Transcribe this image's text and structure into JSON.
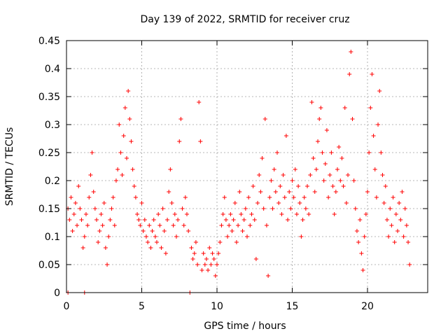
{
  "chart_data": {
    "type": "scatter",
    "title": "Day 139 of 2022, SRMTID for receiver cruz",
    "xlabel": "GPS time / hours",
    "ylabel": "SRMTID / TECUs",
    "xlim": [
      0,
      24
    ],
    "ylim": [
      0,
      0.45
    ],
    "xticks": [
      0,
      5,
      10,
      15,
      20
    ],
    "xtick_labels": [
      "0",
      "5",
      "10",
      "15",
      "20"
    ],
    "yticks": [
      0,
      0.05,
      0.1,
      0.15,
      0.2,
      0.25,
      0.3,
      0.35,
      0.4,
      0.45
    ],
    "ytick_labels": [
      "0",
      "0.05",
      "0.1",
      "0.15",
      "0.2",
      "0.25",
      "0.3",
      "0.35",
      "0.4",
      "0.45"
    ],
    "grid": true,
    "marker": "+",
    "color": "#ff0000",
    "series": [
      {
        "name": "SRMTID",
        "points": [
          [
            0.1,
            0.0
          ],
          [
            0.1,
            0.15
          ],
          [
            0.2,
            0.13
          ],
          [
            0.3,
            0.17
          ],
          [
            0.4,
            0.11
          ],
          [
            0.5,
            0.14
          ],
          [
            0.6,
            0.16
          ],
          [
            0.7,
            0.12
          ],
          [
            0.8,
            0.19
          ],
          [
            0.9,
            0.15
          ],
          [
            1.0,
            0.13
          ],
          [
            1.1,
            0.08
          ],
          [
            1.2,
            0.1
          ],
          [
            1.2,
            0.0
          ],
          [
            1.3,
            0.14
          ],
          [
            1.4,
            0.12
          ],
          [
            1.5,
            0.17
          ],
          [
            1.6,
            0.21
          ],
          [
            1.7,
            0.25
          ],
          [
            1.8,
            0.18
          ],
          [
            1.9,
            0.15
          ],
          [
            2.0,
            0.13
          ],
          [
            2.1,
            0.09
          ],
          [
            2.2,
            0.11
          ],
          [
            2.3,
            0.14
          ],
          [
            2.4,
            0.12
          ],
          [
            2.5,
            0.16
          ],
          [
            2.6,
            0.08
          ],
          [
            2.7,
            0.05
          ],
          [
            2.8,
            0.1
          ],
          [
            2.9,
            0.13
          ],
          [
            3.0,
            0.15
          ],
          [
            3.1,
            0.17
          ],
          [
            3.2,
            0.12
          ],
          [
            3.3,
            0.2
          ],
          [
            3.4,
            0.22
          ],
          [
            3.5,
            0.3
          ],
          [
            3.6,
            0.25
          ],
          [
            3.7,
            0.21
          ],
          [
            3.8,
            0.28
          ],
          [
            3.9,
            0.33
          ],
          [
            4.0,
            0.24
          ],
          [
            4.1,
            0.36
          ],
          [
            4.2,
            0.31
          ],
          [
            4.3,
            0.27
          ],
          [
            4.4,
            0.22
          ],
          [
            4.5,
            0.19
          ],
          [
            4.6,
            0.17
          ],
          [
            4.7,
            0.14
          ],
          [
            4.8,
            0.13
          ],
          [
            4.9,
            0.12
          ],
          [
            5.0,
            0.16
          ],
          [
            5.1,
            0.11
          ],
          [
            5.2,
            0.13
          ],
          [
            5.3,
            0.1
          ],
          [
            5.4,
            0.09
          ],
          [
            5.5,
            0.12
          ],
          [
            5.6,
            0.08
          ],
          [
            5.7,
            0.11
          ],
          [
            5.8,
            0.13
          ],
          [
            5.9,
            0.1
          ],
          [
            6.0,
            0.09
          ],
          [
            6.1,
            0.14
          ],
          [
            6.2,
            0.12
          ],
          [
            6.3,
            0.08
          ],
          [
            6.4,
            0.15
          ],
          [
            6.5,
            0.11
          ],
          [
            6.6,
            0.07
          ],
          [
            6.7,
            0.13
          ],
          [
            6.8,
            0.18
          ],
          [
            6.9,
            0.22
          ],
          [
            7.0,
            0.16
          ],
          [
            7.1,
            0.12
          ],
          [
            7.2,
            0.14
          ],
          [
            7.3,
            0.1
          ],
          [
            7.4,
            0.13
          ],
          [
            7.5,
            0.27
          ],
          [
            7.6,
            0.31
          ],
          [
            7.7,
            0.15
          ],
          [
            7.8,
            0.12
          ],
          [
            7.9,
            0.17
          ],
          [
            8.0,
            0.14
          ],
          [
            8.1,
            0.11
          ],
          [
            8.2,
            0.0
          ],
          [
            8.3,
            0.08
          ],
          [
            8.4,
            0.06
          ],
          [
            8.5,
            0.07
          ],
          [
            8.6,
            0.09
          ],
          [
            8.7,
            0.05
          ],
          [
            8.8,
            0.34
          ],
          [
            8.9,
            0.27
          ],
          [
            9.0,
            0.04
          ],
          [
            9.1,
            0.07
          ],
          [
            9.2,
            0.05
          ],
          [
            9.3,
            0.06
          ],
          [
            9.4,
            0.04
          ],
          [
            9.5,
            0.08
          ],
          [
            9.6,
            0.05
          ],
          [
            9.7,
            0.07
          ],
          [
            9.8,
            0.06
          ],
          [
            9.9,
            0.03
          ],
          [
            10.0,
            0.05
          ],
          [
            10.1,
            0.07
          ],
          [
            10.2,
            0.09
          ],
          [
            10.3,
            0.12
          ],
          [
            10.4,
            0.14
          ],
          [
            10.5,
            0.17
          ],
          [
            10.6,
            0.13
          ],
          [
            10.7,
            0.1
          ],
          [
            10.8,
            0.12
          ],
          [
            10.9,
            0.14
          ],
          [
            11.0,
            0.11
          ],
          [
            11.1,
            0.13
          ],
          [
            11.2,
            0.16
          ],
          [
            11.3,
            0.09
          ],
          [
            11.4,
            0.12
          ],
          [
            11.5,
            0.18
          ],
          [
            11.6,
            0.14
          ],
          [
            11.7,
            0.11
          ],
          [
            11.8,
            0.13
          ],
          [
            11.9,
            0.15
          ],
          [
            12.0,
            0.1
          ],
          [
            12.1,
            0.17
          ],
          [
            12.2,
            0.12
          ],
          [
            12.3,
            0.14
          ],
          [
            12.4,
            0.19
          ],
          [
            12.5,
            0.13
          ],
          [
            12.6,
            0.06
          ],
          [
            12.7,
            0.16
          ],
          [
            12.8,
            0.21
          ],
          [
            12.9,
            0.18
          ],
          [
            13.0,
            0.24
          ],
          [
            13.1,
            0.15
          ],
          [
            13.2,
            0.31
          ],
          [
            13.3,
            0.12
          ],
          [
            13.4,
            0.03
          ],
          [
            13.5,
            0.17
          ],
          [
            13.6,
            0.2
          ],
          [
            13.7,
            0.15
          ],
          [
            13.8,
            0.22
          ],
          [
            13.9,
            0.18
          ],
          [
            14.0,
            0.25
          ],
          [
            14.1,
            0.16
          ],
          [
            14.2,
            0.19
          ],
          [
            14.3,
            0.14
          ],
          [
            14.4,
            0.21
          ],
          [
            14.5,
            0.17
          ],
          [
            14.6,
            0.28
          ],
          [
            14.7,
            0.13
          ],
          [
            14.8,
            0.18
          ],
          [
            14.9,
            0.15
          ],
          [
            15.0,
            0.2
          ],
          [
            15.1,
            0.17
          ],
          [
            15.2,
            0.22
          ],
          [
            15.3,
            0.14
          ],
          [
            15.4,
            0.19
          ],
          [
            15.5,
            0.16
          ],
          [
            15.6,
            0.1
          ],
          [
            15.7,
            0.13
          ],
          [
            15.8,
            0.17
          ],
          [
            15.9,
            0.15
          ],
          [
            16.0,
            0.19
          ],
          [
            16.1,
            0.14
          ],
          [
            16.2,
            0.21
          ],
          [
            16.3,
            0.34
          ],
          [
            16.4,
            0.24
          ],
          [
            16.5,
            0.18
          ],
          [
            16.6,
            0.22
          ],
          [
            16.7,
            0.27
          ],
          [
            16.8,
            0.31
          ],
          [
            16.9,
            0.33
          ],
          [
            17.0,
            0.25
          ],
          [
            17.1,
            0.2
          ],
          [
            17.2,
            0.23
          ],
          [
            17.3,
            0.29
          ],
          [
            17.4,
            0.17
          ],
          [
            17.5,
            0.21
          ],
          [
            17.6,
            0.25
          ],
          [
            17.7,
            0.19
          ],
          [
            17.8,
            0.14
          ],
          [
            17.9,
            0.18
          ],
          [
            18.0,
            0.22
          ],
          [
            18.1,
            0.26
          ],
          [
            18.2,
            0.2
          ],
          [
            18.3,
            0.24
          ],
          [
            18.4,
            0.19
          ],
          [
            18.5,
            0.33
          ],
          [
            18.6,
            0.16
          ],
          [
            18.7,
            0.21
          ],
          [
            18.8,
            0.39
          ],
          [
            18.9,
            0.43
          ],
          [
            19.0,
            0.31
          ],
          [
            19.1,
            0.2
          ],
          [
            19.2,
            0.15
          ],
          [
            19.3,
            0.11
          ],
          [
            19.4,
            0.09
          ],
          [
            19.5,
            0.13
          ],
          [
            19.6,
            0.07
          ],
          [
            19.7,
            0.04
          ],
          [
            19.8,
            0.1
          ],
          [
            19.9,
            0.14
          ],
          [
            20.0,
            0.18
          ],
          [
            20.1,
            0.25
          ],
          [
            20.2,
            0.33
          ],
          [
            20.3,
            0.39
          ],
          [
            20.4,
            0.28
          ],
          [
            20.5,
            0.22
          ],
          [
            20.6,
            0.17
          ],
          [
            20.7,
            0.3
          ],
          [
            20.8,
            0.36
          ],
          [
            20.9,
            0.25
          ],
          [
            21.0,
            0.21
          ],
          [
            21.1,
            0.16
          ],
          [
            21.2,
            0.19
          ],
          [
            21.3,
            0.13
          ],
          [
            21.4,
            0.1
          ],
          [
            21.5,
            0.15
          ],
          [
            21.6,
            0.12
          ],
          [
            21.7,
            0.17
          ],
          [
            21.8,
            0.09
          ],
          [
            21.9,
            0.14
          ],
          [
            22.0,
            0.11
          ],
          [
            22.1,
            0.16
          ],
          [
            22.2,
            0.13
          ],
          [
            22.3,
            0.18
          ],
          [
            22.4,
            0.1
          ],
          [
            22.5,
            0.15
          ],
          [
            22.6,
            0.12
          ],
          [
            22.7,
            0.09
          ],
          [
            22.8,
            0.05
          ]
        ]
      }
    ]
  }
}
